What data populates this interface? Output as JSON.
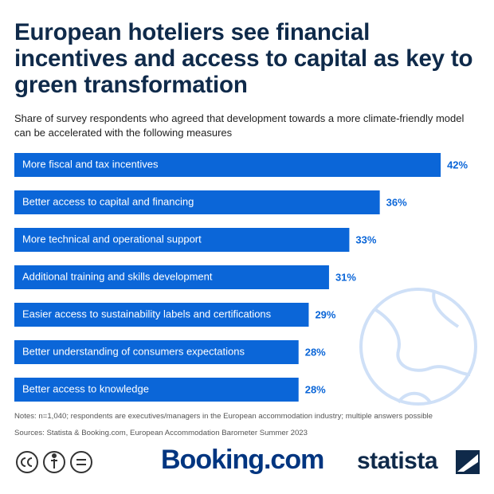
{
  "chart_data": {
    "type": "bar",
    "orientation": "horizontal",
    "title": "European hoteliers see financial incentives and access to capital as key to green transformation",
    "subtitle": "Share of survey respondents who agreed that development towards a more climate-friendly model can be accelerated with the following measures",
    "categories": [
      "More fiscal and tax incentives",
      "Better access to capital and financing",
      "More technical and operational support",
      "Additional training and skills development",
      "Easier access to sustainability labels and certifications",
      "Better understanding of consumers expectations",
      "Better access to knowledge"
    ],
    "values": [
      42,
      36,
      33,
      31,
      29,
      28,
      28
    ],
    "value_labels": [
      "42%",
      "36%",
      "33%",
      "31%",
      "29%",
      "28%",
      "28%"
    ],
    "color": "#0b66d8",
    "notes": "Notes: n=1,040; respondents are executives/managers in the European accommodation industry; multiple answers possible",
    "source": "Sources: Statista & Booking.com, European Accommodation Barometer Summer 2023"
  },
  "footer": {
    "brand": "Booking.com",
    "logo": "statista"
  }
}
